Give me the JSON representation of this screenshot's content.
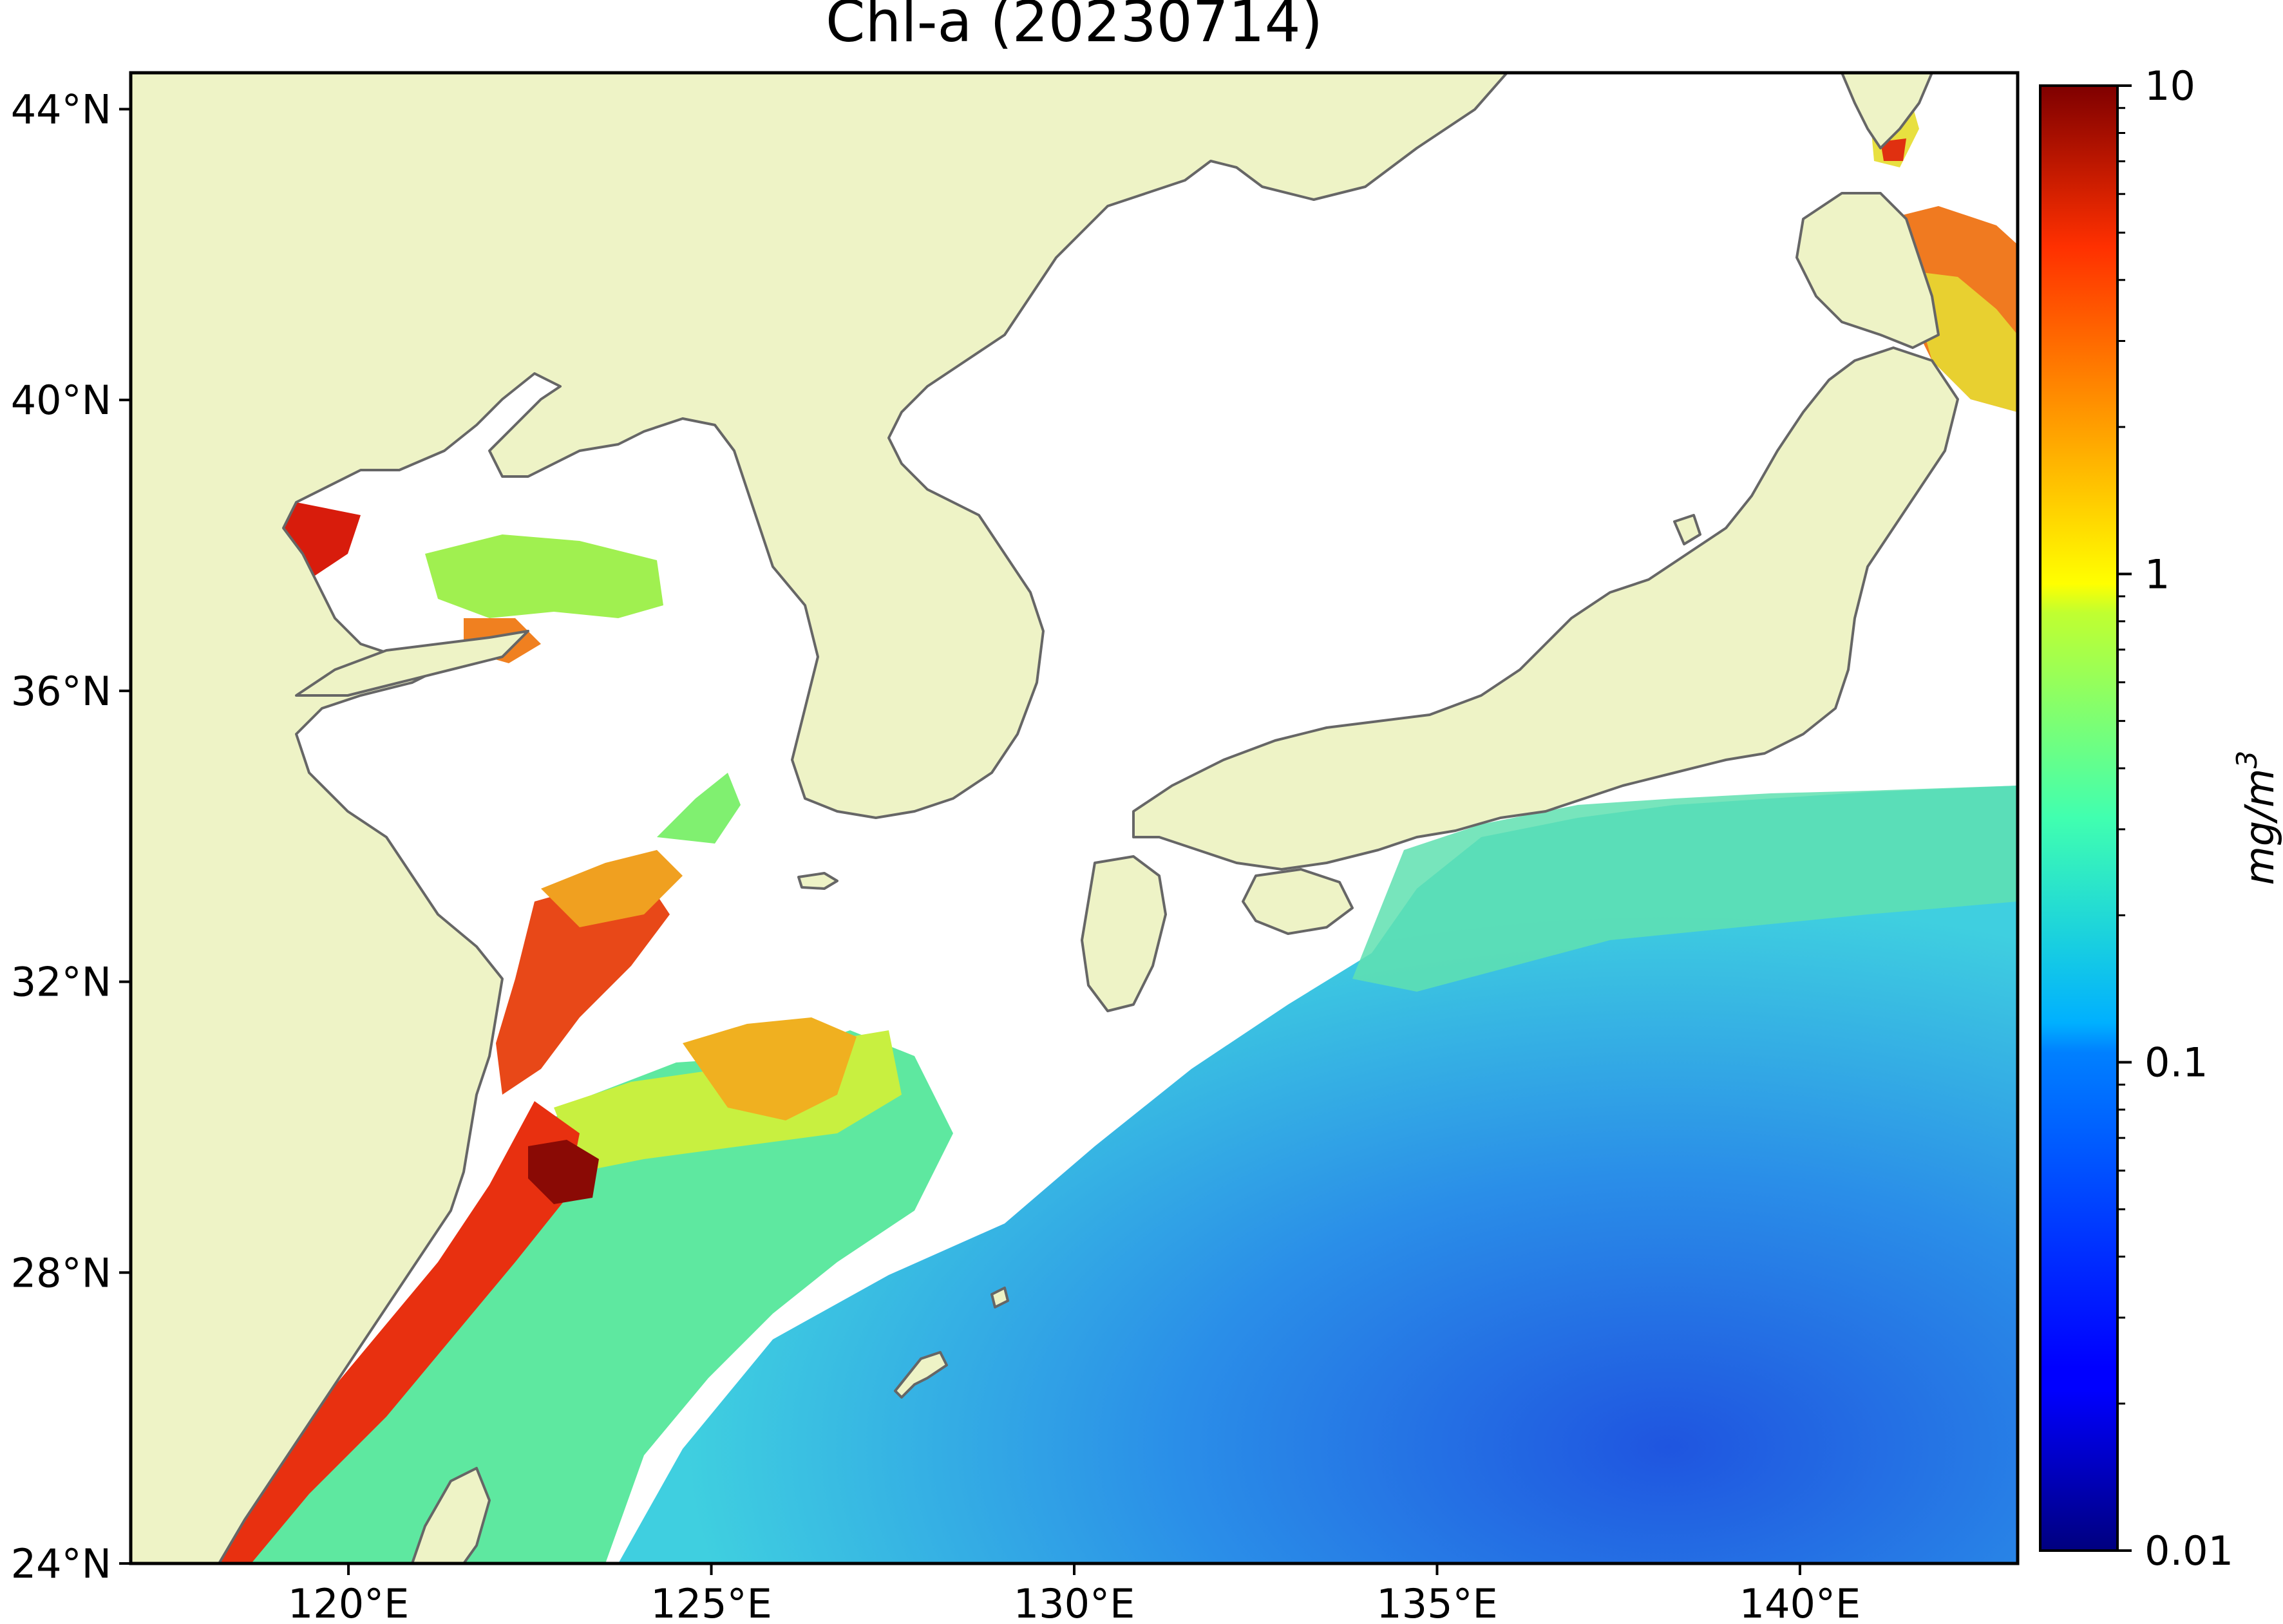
{
  "title": "Chl-a (20230714)",
  "map": {
    "lon_range": [
      117,
      143
    ],
    "lat_range": [
      24,
      44.5
    ],
    "lon_ticks": [
      {
        "value": 120,
        "label": "120°E"
      },
      {
        "value": 125,
        "label": "125°E"
      },
      {
        "value": 130,
        "label": "130°E"
      },
      {
        "value": 135,
        "label": "135°E"
      },
      {
        "value": 140,
        "label": "140°E"
      }
    ],
    "lat_ticks": [
      {
        "value": 44,
        "label": "44°N"
      },
      {
        "value": 40,
        "label": "40°N"
      },
      {
        "value": 36,
        "label": "36°N"
      },
      {
        "value": 32,
        "label": "32°N"
      },
      {
        "value": 28,
        "label": "28°N"
      },
      {
        "value": 24,
        "label": "24°N"
      }
    ],
    "land_color": "#eef3c6",
    "coast_color": "#666666"
  },
  "colorbar": {
    "label": "mg/m³",
    "label_base": "mg/m",
    "label_exp": "3",
    "scale": "log",
    "range": [
      0.01,
      10
    ],
    "colormap": "jet",
    "major_ticks": [
      {
        "value": 10,
        "label": "10"
      },
      {
        "value": 1,
        "label": "1"
      },
      {
        "value": 0.1,
        "label": "0.1"
      },
      {
        "value": 0.01,
        "label": "0.01"
      }
    ],
    "minor_ticks": [
      0.02,
      0.03,
      0.04,
      0.05,
      0.06,
      0.07,
      0.08,
      0.09,
      0.2,
      0.3,
      0.4,
      0.5,
      0.6,
      0.7,
      0.8,
      0.9,
      2,
      3,
      4,
      5,
      6,
      7,
      8,
      9
    ]
  }
}
